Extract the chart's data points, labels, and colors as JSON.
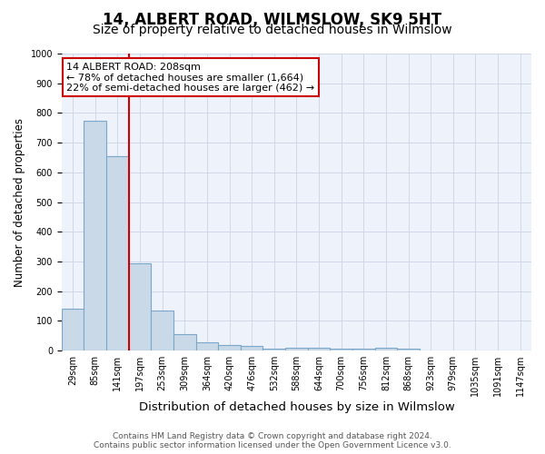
{
  "title1": "14, ALBERT ROAD, WILMSLOW, SK9 5HT",
  "title2": "Size of property relative to detached houses in Wilmslow",
  "xlabel": "Distribution of detached houses by size in Wilmslow",
  "ylabel": "Number of detached properties",
  "bins": [
    "29sqm",
    "85sqm",
    "141sqm",
    "197sqm",
    "253sqm",
    "309sqm",
    "364sqm",
    "420sqm",
    "476sqm",
    "532sqm",
    "588sqm",
    "644sqm",
    "700sqm",
    "756sqm",
    "812sqm",
    "868sqm",
    "923sqm",
    "979sqm",
    "1035sqm",
    "1091sqm",
    "1147sqm"
  ],
  "values": [
    140,
    775,
    655,
    295,
    135,
    55,
    28,
    18,
    15,
    8,
    10,
    10,
    8,
    8,
    10,
    8,
    0,
    0,
    0,
    0,
    0
  ],
  "bar_color": "#c9d9e8",
  "bar_edge_color": "#7aa8cc",
  "red_line_x": 2.5,
  "red_line_color": "#cc0000",
  "annotation_text": "14 ALBERT ROAD: 208sqm\n← 78% of detached houses are smaller (1,664)\n22% of semi-detached houses are larger (462) →",
  "annotation_box_color": "#ffffff",
  "annotation_box_edge_color": "#cc0000",
  "ylim": [
    0,
    1000
  ],
  "yticks": [
    0,
    100,
    200,
    300,
    400,
    500,
    600,
    700,
    800,
    900,
    1000
  ],
  "grid_color": "#d0d8e8",
  "background_color": "#eef2fb",
  "footer1": "Contains HM Land Registry data © Crown copyright and database right 2024.",
  "footer2": "Contains public sector information licensed under the Open Government Licence v3.0.",
  "title1_fontsize": 12,
  "title2_fontsize": 10,
  "xlabel_fontsize": 9.5,
  "ylabel_fontsize": 8.5,
  "tick_fontsize": 7,
  "footer_fontsize": 6.5,
  "annotation_fontsize": 8
}
